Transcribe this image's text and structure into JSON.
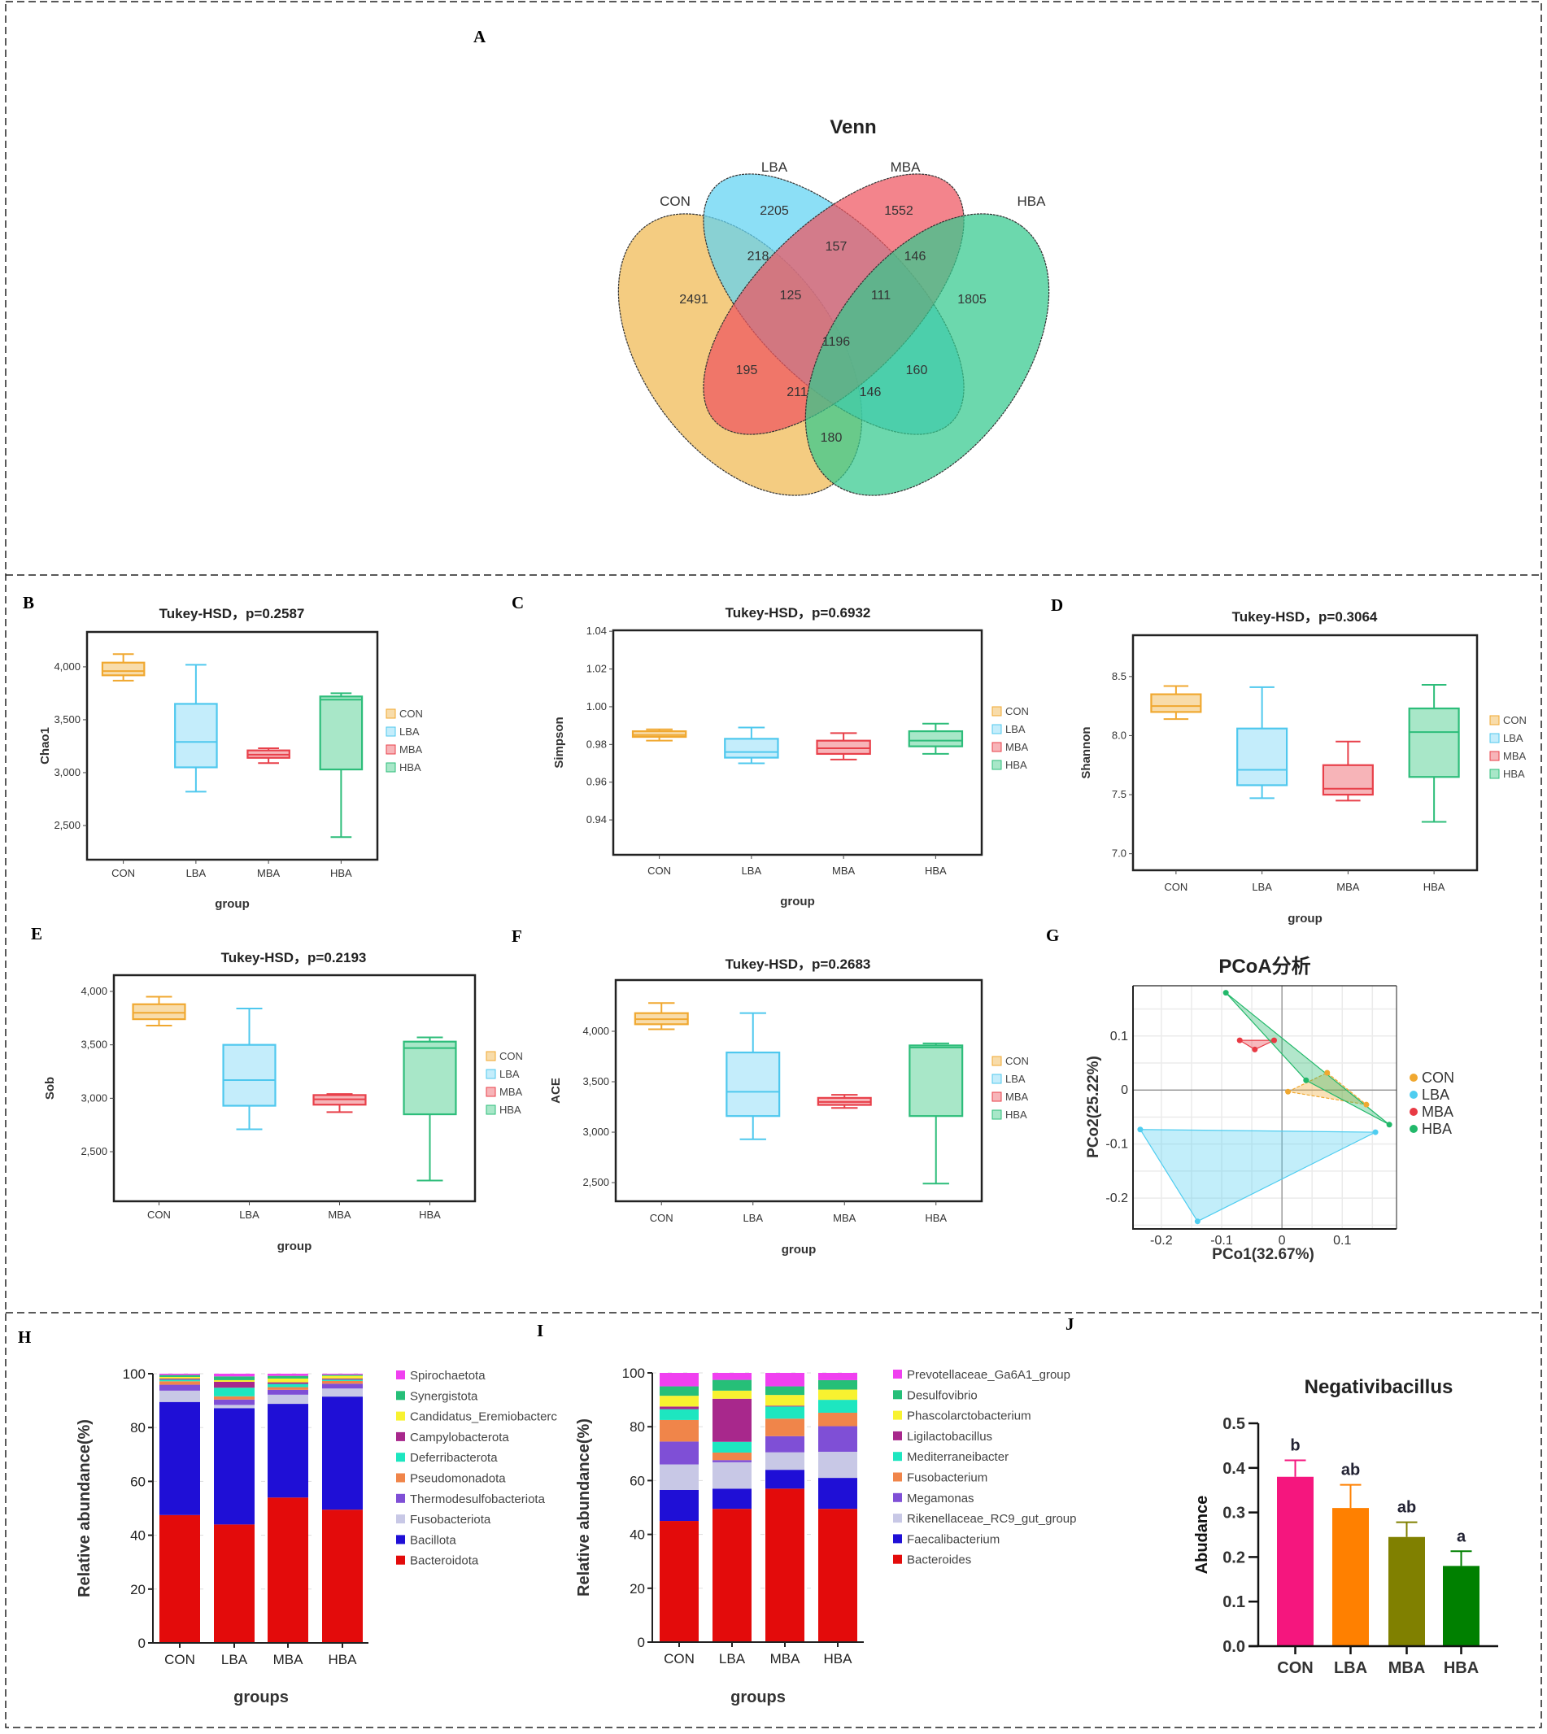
{
  "panel_labels": [
    "A",
    "B",
    "C",
    "D",
    "E",
    "F",
    "G",
    "H",
    "I",
    "J"
  ],
  "chart_data": [
    {
      "type": "venn",
      "title": "Venn",
      "sets": [
        "CON",
        "LBA",
        "MBA",
        "HBA"
      ],
      "colors": {
        "CON": "#f0b950",
        "LBA": "#5fd3f3",
        "MBA": "#ee5560",
        "HBA": "#33c98e"
      },
      "regions": [
        {
          "key": "CON",
          "value": "2491"
        },
        {
          "key": "LBA",
          "value": "2205"
        },
        {
          "key": "MBA",
          "value": "1552"
        },
        {
          "key": "HBA",
          "value": "1805"
        },
        {
          "key": "CON&LBA",
          "value": "218"
        },
        {
          "key": "LBA&MBA",
          "value": "157"
        },
        {
          "key": "MBA&HBA",
          "value": "146"
        },
        {
          "key": "CON&LBA&MBA",
          "value": "125"
        },
        {
          "key": "LBA&MBA&HBA",
          "value": "111"
        },
        {
          "key": "CON&LBA&MBA&HBA",
          "value": "1196"
        },
        {
          "key": "CON&MBA",
          "value": "195"
        },
        {
          "key": "LBA&HBA",
          "value": "160"
        },
        {
          "key": "CON&MBA&HBA",
          "value": "211"
        },
        {
          "key": "CON&LBA&HBA",
          "value": "146"
        },
        {
          "key": "CON&HBA",
          "value": "180"
        }
      ]
    },
    {
      "type": "box",
      "title": "Tukey-HSD，p=0.2587",
      "ylabel": "Chao1",
      "xlabel": "group",
      "categories": [
        "CON",
        "LBA",
        "MBA",
        "HBA"
      ],
      "yticks": [
        2500,
        3000,
        3500,
        4000
      ],
      "ytick_labels": [
        "2,500",
        "3,000",
        "3,500",
        "4,000"
      ],
      "ylim": [
        2177,
        4330
      ],
      "boxes": [
        {
          "min": 3870,
          "q1": 3920,
          "median": 3960,
          "q3": 4040,
          "max": 4120
        },
        {
          "min": 2820,
          "q1": 3050,
          "median": 3290,
          "q3": 3650,
          "max": 4020
        },
        {
          "min": 3090,
          "q1": 3140,
          "median": 3170,
          "q3": 3210,
          "max": 3230
        },
        {
          "min": 2390,
          "q1": 3030,
          "median": 3690,
          "q3": 3720,
          "max": 3750
        }
      ],
      "legend": [
        "CON",
        "LBA",
        "MBA",
        "HBA"
      ]
    },
    {
      "type": "box",
      "title": "Tukey-HSD，p=0.6932",
      "ylabel": "Simpson",
      "xlabel": "group",
      "categories": [
        "CON",
        "LBA",
        "MBA",
        "HBA"
      ],
      "yticks": [
        0.94,
        0.96,
        0.98,
        1.0,
        1.02,
        1.04
      ],
      "ytick_labels": [
        "0.94",
        "0.96",
        "0.98",
        "1.00",
        "1.02",
        "1.04"
      ],
      "ylim": [
        0.9215,
        1.0405
      ],
      "boxes": [
        {
          "min": 0.982,
          "q1": 0.984,
          "median": 0.985,
          "q3": 0.987,
          "max": 0.988
        },
        {
          "min": 0.97,
          "q1": 0.973,
          "median": 0.976,
          "q3": 0.983,
          "max": 0.989
        },
        {
          "min": 0.972,
          "q1": 0.975,
          "median": 0.978,
          "q3": 0.982,
          "max": 0.986
        },
        {
          "min": 0.975,
          "q1": 0.979,
          "median": 0.982,
          "q3": 0.987,
          "max": 0.991
        }
      ],
      "legend": [
        "CON",
        "LBA",
        "MBA",
        "HBA"
      ]
    },
    {
      "type": "box",
      "title": "Tukey-HSD，p=0.3064",
      "ylabel": "Shannon",
      "xlabel": "group",
      "categories": [
        "CON",
        "LBA",
        "MBA",
        "HBA"
      ],
      "yticks": [
        7.0,
        7.5,
        8.0,
        8.5
      ],
      "ytick_labels": [
        "7.0",
        "7.5",
        "8.0",
        "8.5"
      ],
      "ylim": [
        6.86,
        8.85
      ],
      "boxes": [
        {
          "min": 8.14,
          "q1": 8.2,
          "median": 8.25,
          "q3": 8.35,
          "max": 8.42
        },
        {
          "min": 7.47,
          "q1": 7.58,
          "median": 7.71,
          "q3": 8.06,
          "max": 8.41
        },
        {
          "min": 7.45,
          "q1": 7.5,
          "median": 7.55,
          "q3": 7.75,
          "max": 7.95
        },
        {
          "min": 7.27,
          "q1": 7.65,
          "median": 8.03,
          "q3": 8.23,
          "max": 8.43
        }
      ],
      "legend": [
        "CON",
        "LBA",
        "MBA",
        "HBA"
      ]
    },
    {
      "type": "box",
      "title": "Tukey-HSD，p=0.2193",
      "ylabel": "Sob",
      "xlabel": "group",
      "categories": [
        "CON",
        "LBA",
        "MBA",
        "HBA"
      ],
      "yticks": [
        2500,
        3000,
        3500,
        4000
      ],
      "ytick_labels": [
        "2,500",
        "3,000",
        "3,500",
        "4,000"
      ],
      "ylim": [
        2036,
        4152
      ],
      "boxes": [
        {
          "min": 3680,
          "q1": 3740,
          "median": 3800,
          "q3": 3880,
          "max": 3950
        },
        {
          "min": 2710,
          "q1": 2930,
          "median": 3170,
          "q3": 3500,
          "max": 3840
        },
        {
          "min": 2870,
          "q1": 2940,
          "median": 2990,
          "q3": 3030,
          "max": 3040
        },
        {
          "min": 2230,
          "q1": 2850,
          "median": 3470,
          "q3": 3530,
          "max": 3570
        }
      ],
      "legend": [
        "CON",
        "LBA",
        "MBA",
        "HBA"
      ]
    },
    {
      "type": "box",
      "title": "Tukey-HSD，p=0.2683",
      "ylabel": "ACE",
      "xlabel": "group",
      "categories": [
        "CON",
        "LBA",
        "MBA",
        "HBA"
      ],
      "yticks": [
        2500,
        3000,
        3500,
        4000
      ],
      "ytick_labels": [
        "2,500",
        "3,000",
        "3,500",
        "4,000"
      ],
      "ylim": [
        2315,
        4508
      ],
      "boxes": [
        {
          "min": 4020,
          "q1": 4070,
          "median": 4120,
          "q3": 4180,
          "max": 4280
        },
        {
          "min": 2930,
          "q1": 3160,
          "median": 3400,
          "q3": 3790,
          "max": 4180
        },
        {
          "min": 3240,
          "q1": 3270,
          "median": 3300,
          "q3": 3340,
          "max": 3370
        },
        {
          "min": 2490,
          "q1": 3160,
          "median": 3840,
          "q3": 3860,
          "max": 3880
        }
      ],
      "legend": [
        "CON",
        "LBA",
        "MBA",
        "HBA"
      ]
    },
    {
      "type": "scatter",
      "title": "PCoA分析",
      "xlabel": "PCo1(32.67%)",
      "ylabel": "PCo2(25.22%)",
      "xlim": [
        -0.247,
        0.19
      ],
      "ylim": [
        -0.257,
        0.193
      ],
      "xticks": [
        -0.2,
        -0.1,
        0,
        0.1
      ],
      "xtick_labels": [
        "-0.2",
        "-0.1",
        "0",
        "0.1"
      ],
      "yticks": [
        -0.2,
        -0.1,
        0,
        0.1
      ],
      "ytick_labels": [
        "-0.2",
        "-0.1",
        "0",
        "0.1"
      ],
      "grid": true,
      "legend_position": "right",
      "series": [
        {
          "name": "CON",
          "color": "#f0a830",
          "points": [
            [
              0.01,
              -0.003
            ],
            [
              0.075,
              0.032
            ],
            [
              0.14,
              -0.027
            ]
          ]
        },
        {
          "name": "LBA",
          "color": "#4fcdf0",
          "points": [
            [
              -0.235,
              -0.073
            ],
            [
              -0.14,
              -0.243
            ],
            [
              0.155,
              -0.078
            ]
          ]
        },
        {
          "name": "MBA",
          "color": "#e83a44",
          "points": [
            [
              -0.07,
              0.092
            ],
            [
              -0.045,
              0.075
            ],
            [
              -0.013,
              0.092
            ]
          ]
        },
        {
          "name": "HBA",
          "color": "#22b86a",
          "points": [
            [
              -0.093,
              0.18
            ],
            [
              0.04,
              0.018
            ],
            [
              0.178,
              -0.064
            ]
          ]
        }
      ]
    },
    {
      "type": "bar",
      "stacked": true,
      "title": "",
      "xlabel": "groups",
      "ylabel": "Relative abundance(%)",
      "categories": [
        "CON",
        "LBA",
        "MBA",
        "HBA"
      ],
      "ylim": [
        0,
        100
      ],
      "yticks": [
        0,
        20,
        40,
        60,
        80,
        100
      ],
      "ytick_labels": [
        "0",
        "20",
        "40",
        "60",
        "80",
        "100"
      ],
      "series": [
        {
          "name": "Bacteroidota",
          "color": "#e30b0b",
          "values": [
            47.5,
            44,
            54,
            49.5
          ]
        },
        {
          "name": "Bacillota",
          "color": "#1f0fd6",
          "values": [
            42,
            43.2,
            34.8,
            42
          ]
        },
        {
          "name": "Fusobacteriota",
          "color": "#c8c8e6",
          "values": [
            4.2,
            1.2,
            3.4,
            3
          ]
        },
        {
          "name": "Thermodesulfobacteriota",
          "color": "#7f4fd6",
          "values": [
            2.2,
            2,
            1.8,
            1.8
          ]
        },
        {
          "name": "Pseudomonadota",
          "color": "#f0854a",
          "values": [
            1.3,
            1.2,
            1,
            1
          ]
        },
        {
          "name": "Deferribacterota",
          "color": "#1de6c0",
          "values": [
            0.6,
            3.2,
            1.2,
            0.5
          ]
        },
        {
          "name": "Campylobacterota",
          "color": "#a8288c",
          "values": [
            0.4,
            2.2,
            0.6,
            0.4
          ]
        },
        {
          "name": "Candidatus_Eremiobacterc",
          "color": "#f8f230",
          "values": [
            0.6,
            0.6,
            1.4,
            1
          ]
        },
        {
          "name": "Synergistota",
          "color": "#26bf78",
          "values": [
            0.7,
            1.4,
            1,
            0.4
          ]
        },
        {
          "name": "Spirochaetota",
          "color": "#f040f0",
          "values": [
            0.5,
            1,
            0.8,
            0.4
          ]
        }
      ]
    },
    {
      "type": "bar",
      "stacked": true,
      "title": "",
      "xlabel": "groups",
      "ylabel": "Relative abundance(%)",
      "categories": [
        "CON",
        "LBA",
        "MBA",
        "HBA"
      ],
      "ylim": [
        0,
        100
      ],
      "yticks": [
        0,
        20,
        40,
        60,
        80,
        100
      ],
      "ytick_labels": [
        "0",
        "20",
        "40",
        "60",
        "80",
        "100"
      ],
      "series": [
        {
          "name": "Bacteroides",
          "color": "#e30b0b",
          "values": [
            45,
            49.5,
            57,
            49.5
          ]
        },
        {
          "name": "Faecalibacterium",
          "color": "#1f0fd6",
          "values": [
            11.5,
            7.5,
            7,
            11.5
          ]
        },
        {
          "name": "Rikenellaceae_RC9_gut_group",
          "color": "#c8c8e6",
          "values": [
            9.5,
            9.8,
            6.5,
            9.7
          ]
        },
        {
          "name": "Megamonas",
          "color": "#7f4fd6",
          "values": [
            8.5,
            0.8,
            6,
            9.5
          ]
        },
        {
          "name": "Fusobacterium",
          "color": "#f0854a",
          "values": [
            8,
            2.8,
            6.5,
            5
          ]
        },
        {
          "name": "Mediterraneibacter",
          "color": "#1de6c0",
          "values": [
            4,
            4,
            4.5,
            4.8
          ]
        },
        {
          "name": "Ligilactobacillus",
          "color": "#a8288c",
          "values": [
            1,
            16,
            0.3,
            0
          ]
        },
        {
          "name": "Phascolarctobacterium",
          "color": "#f8f230",
          "values": [
            4,
            3,
            4,
            3.8
          ]
        },
        {
          "name": "Desulfovibrio",
          "color": "#26bf78",
          "values": [
            3.5,
            4,
            3.2,
            3.5
          ]
        },
        {
          "name": "Prevotellaceae_Ga6A1_group",
          "color": "#f040f0",
          "values": [
            5,
            2.6,
            5,
            2.7
          ]
        }
      ]
    },
    {
      "type": "bar",
      "title": "Negativibacillus",
      "xlabel": "",
      "ylabel": "Abudance",
      "categories": [
        "CON",
        "LBA",
        "MBA",
        "HBA"
      ],
      "values": [
        0.38,
        0.31,
        0.245,
        0.18
      ],
      "errors": [
        0.037,
        0.052,
        0.033,
        0.033
      ],
      "letters": [
        "b",
        "ab",
        "ab",
        "a"
      ],
      "colors": [
        "#f5167e",
        "#ff8000",
        "#808000",
        "#008000"
      ],
      "ylim": [
        0,
        0.5
      ],
      "yticks": [
        0,
        0.1,
        0.2,
        0.3,
        0.4,
        0.5
      ],
      "ytick_labels": [
        "0.0",
        "0.1",
        "0.2",
        "0.3",
        "0.4",
        "0.5"
      ]
    }
  ]
}
